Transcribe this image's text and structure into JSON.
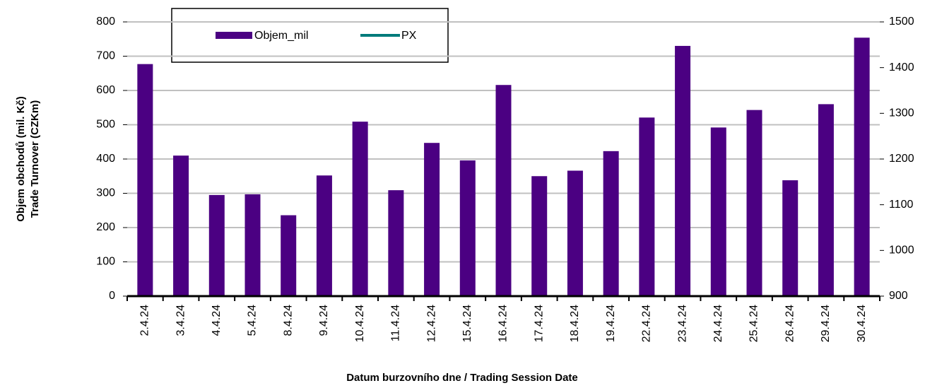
{
  "chart_data": {
    "type": "bar",
    "y_label_lines": [
      "Objem obchodů (mil. Kč)",
      "Trade Turnover (CZKm)"
    ],
    "x_label": "Datum burzovního dne / Trading Session Date",
    "categories": [
      "2.4.24",
      "3.4.24",
      "4.4.24",
      "5.4.24",
      "8.4.24",
      "9.4.24",
      "10.4.24",
      "11.4.24",
      "12.4.24",
      "15.4.24",
      "16.4.24",
      "17.4.24",
      "18.4.24",
      "19.4.24",
      "22.4.24",
      "23.4.24",
      "24.4.24",
      "25.4.24",
      "26.4.24",
      "29.4.24",
      "30.4.24"
    ],
    "series": [
      {
        "name": "Objem_mil",
        "color": "#4b0082",
        "values": [
          677,
          410,
          295,
          297,
          236,
          352,
          509,
          309,
          447,
          396,
          616,
          350,
          366,
          423,
          521,
          730,
          492,
          543,
          338,
          560,
          754
        ]
      },
      {
        "name": "PX",
        "color": "#007b7b",
        "axis": "y2",
        "values": [
          null,
          null,
          null,
          null,
          null,
          null,
          null,
          null,
          null,
          null,
          null,
          null,
          null,
          null,
          null,
          null,
          null,
          null,
          null,
          null,
          null
        ]
      }
    ],
    "ylim": [
      0,
      800
    ],
    "yticks": [
      0,
      100,
      200,
      300,
      400,
      500,
      600,
      700,
      800
    ],
    "y2lim": [
      900,
      1500
    ],
    "y2ticks": [
      900,
      1000,
      1100,
      1200,
      1300,
      1400,
      1500
    ],
    "grid": true
  }
}
